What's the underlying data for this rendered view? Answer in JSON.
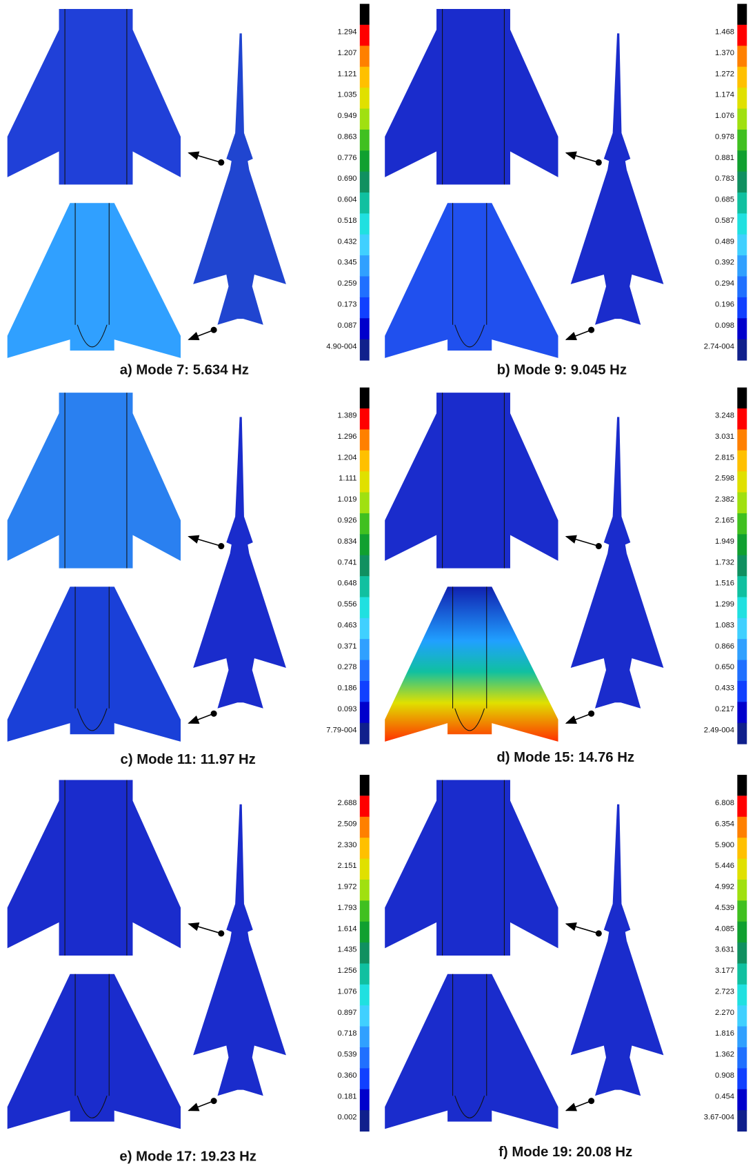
{
  "panels": [
    {
      "caption": "a) Mode 7: 5.634 Hz",
      "scale": [
        "1.294",
        "1.207",
        "1.121",
        "1.035",
        "0.949",
        "0.863",
        "0.776",
        "0.690",
        "0.604",
        "0.518",
        "0.432",
        "0.345",
        "0.259",
        "0.173",
        "0.087",
        "4.90-004"
      ]
    },
    {
      "caption": "b) Mode 9: 9.045 Hz",
      "scale": [
        "1.468",
        "1.370",
        "1.272",
        "1.174",
        "1.076",
        "0.978",
        "0.881",
        "0.783",
        "0.685",
        "0.587",
        "0.489",
        "0.392",
        "0.294",
        "0.196",
        "0.098",
        "2.74-004"
      ]
    },
    {
      "caption": "c) Mode 11: 11.97 Hz",
      "scale": [
        "1.389",
        "1.296",
        "1.204",
        "1.111",
        "1.019",
        "0.926",
        "0.834",
        "0.741",
        "0.648",
        "0.556",
        "0.463",
        "0.371",
        "0.278",
        "0.186",
        "0.093",
        "7.79-004"
      ]
    },
    {
      "caption": "d) Mode 15: 14.76 Hz",
      "scale": [
        "3.248",
        "3.031",
        "2.815",
        "2.598",
        "2.382",
        "2.165",
        "1.949",
        "1.732",
        "1.516",
        "1.299",
        "1.083",
        "0.866",
        "0.650",
        "0.433",
        "0.217",
        "2.49-004"
      ]
    },
    {
      "caption": "e) Mode 17: 19.23 Hz",
      "scale": [
        "2.688",
        "2.509",
        "2.330",
        "2.151",
        "1.972",
        "1.793",
        "1.614",
        "1.435",
        "1.256",
        "1.076",
        "0.897",
        "0.718",
        "0.539",
        "0.360",
        "0.181",
        "0.002"
      ]
    },
    {
      "caption": "f) Mode 19: 20.08 Hz",
      "scale": [
        "6.808",
        "6.354",
        "5.900",
        "5.446",
        "4.992",
        "4.539",
        "4.085",
        "3.631",
        "3.177",
        "2.723",
        "2.270",
        "1.816",
        "1.362",
        "0.908",
        "0.454",
        "3.67-004"
      ]
    }
  ]
}
